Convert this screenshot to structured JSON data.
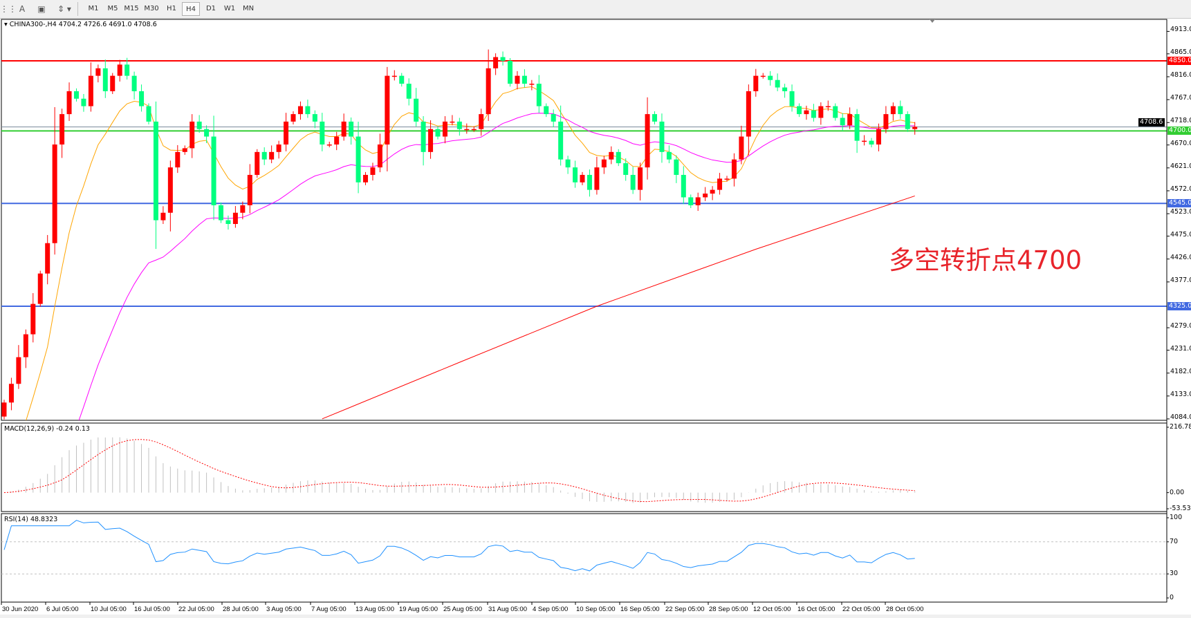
{
  "toolbar": {
    "icons": [
      "crosshair-period-icon",
      "text-label-icon",
      "text-box-icon",
      "arrows-icon"
    ],
    "timeframes": [
      "M1",
      "M5",
      "M15",
      "M30",
      "H1",
      "H4",
      "D1",
      "W1",
      "MN"
    ],
    "active_timeframe": "H4"
  },
  "main": {
    "legend": "CHINA300-,H4  4704.2 4726.6 4691.0 4708.6",
    "symbol": "CHINA300-",
    "timeframe": "H4",
    "ohlc": {
      "open": 4704.2,
      "high": 4726.6,
      "low": 4691.0,
      "close": 4708.6
    },
    "price_ticks": [
      "4913.0",
      "4865.0",
      "4816.0",
      "4767.0",
      "4718.0",
      "4670.0",
      "4621.0",
      "4572.0",
      "4523.0",
      "4475.0",
      "4426.0",
      "4377.0",
      "4279.0",
      "4231.0",
      "4182.0",
      "4133.0",
      "4084.0"
    ],
    "levels": [
      {
        "value": 4850.0,
        "label": "4850.0",
        "color": "#ff0000"
      },
      {
        "value": 4700.0,
        "label": "4700.0",
        "color": "#32cd32"
      },
      {
        "value": 4545.0,
        "label": "4545.0",
        "color": "#4169e1"
      },
      {
        "value": 4325.0,
        "label": "4325.0",
        "color": "#4169e1"
      }
    ],
    "current_price": {
      "value": 4708.6,
      "label": "4708.6",
      "color": "#778899"
    },
    "annotation": "多空转折点4700",
    "annotation_color": "#e8242b"
  },
  "chart_data": {
    "type": "candlestick",
    "ylim": [
      4084,
      4913
    ],
    "up_color": "#ff0000",
    "down_color": "#00ff7f",
    "close": [
      4119,
      4159,
      4216,
      4265,
      4330,
      4395,
      4460,
      4671,
      4736,
      4785,
      4769,
      4753,
      4818,
      4834,
      4785,
      4818,
      4842,
      4818,
      4785,
      4753,
      4720,
      4509,
      4525,
      4622,
      4655,
      4663,
      4720,
      4704,
      4688,
      4541,
      4509,
      4501,
      4525,
      4541,
      4606,
      4655,
      4639,
      4655,
      4671,
      4720,
      4736,
      4753,
      4736,
      4720,
      4671,
      4671,
      4688,
      4720,
      4688,
      4590,
      4606,
      4622,
      4671,
      4818,
      4818,
      4801,
      4769,
      4720,
      4655,
      4704,
      4688,
      4720,
      4720,
      4704,
      4704,
      4704,
      4736,
      4834,
      4858,
      4850,
      4801,
      4818,
      4801,
      4801,
      4753,
      4736,
      4720,
      4639,
      4622,
      4590,
      4606,
      4574,
      4622,
      4639,
      4655,
      4631,
      4606,
      4574,
      4622,
      4736,
      4720,
      4655,
      4639,
      4606,
      4558,
      4541,
      4558,
      4566,
      4574,
      4598,
      4598,
      4639,
      4688,
      4785,
      4818,
      4818,
      4809,
      4793,
      4785,
      4753,
      4736,
      4744,
      4728,
      4753,
      4753,
      4728,
      4712,
      4736,
      4679,
      4679,
      4671,
      4704,
      4736,
      4753,
      4736,
      4704,
      4709
    ],
    "moving_averages": [
      {
        "color": "#ffa500"
      },
      {
        "color": "#ff00ff"
      },
      {
        "color": "#ff0000",
        "points": [
          [
            44,
            4084
          ],
          [
            63,
            4205
          ],
          [
            82,
            4325
          ],
          [
            104,
            4447
          ],
          [
            126,
            4561
          ]
        ]
      }
    ],
    "x_tick_labels": [
      "30 Jun 2020",
      "6 Jul 05:00",
      "10 Jul 05:00",
      "16 Jul 05:00",
      "22 Jul 05:00",
      "28 Jul 05:00",
      "3 Aug 05:00",
      "7 Aug 05:00",
      "13 Aug 05:00",
      "19 Aug 05:00",
      "25 Aug 05:00",
      "31 Aug 05:00",
      "4 Sep 05:00",
      "10 Sep 05:00",
      "16 Sep 05:00",
      "22 Sep 05:00",
      "28 Sep 05:00",
      "12 Oct 05:00",
      "16 Oct 05:00",
      "22 Oct 05:00",
      "28 Oct 05:00"
    ]
  },
  "macd": {
    "legend": "MACD(12,26,9) -0.24 0.13",
    "ylim": [
      -53.53,
      216.78
    ],
    "ticks": [
      "216.78",
      "0.00",
      "-53.53"
    ],
    "hist_color": "#c0c0c0",
    "signal_color": "#ff0000"
  },
  "rsi": {
    "legend": "RSI(14) 48.8323",
    "ylim": [
      0,
      100
    ],
    "ticks": [
      "100",
      "70",
      "30",
      "0"
    ],
    "levels": [
      70,
      30
    ],
    "color": "#1e90ff"
  }
}
